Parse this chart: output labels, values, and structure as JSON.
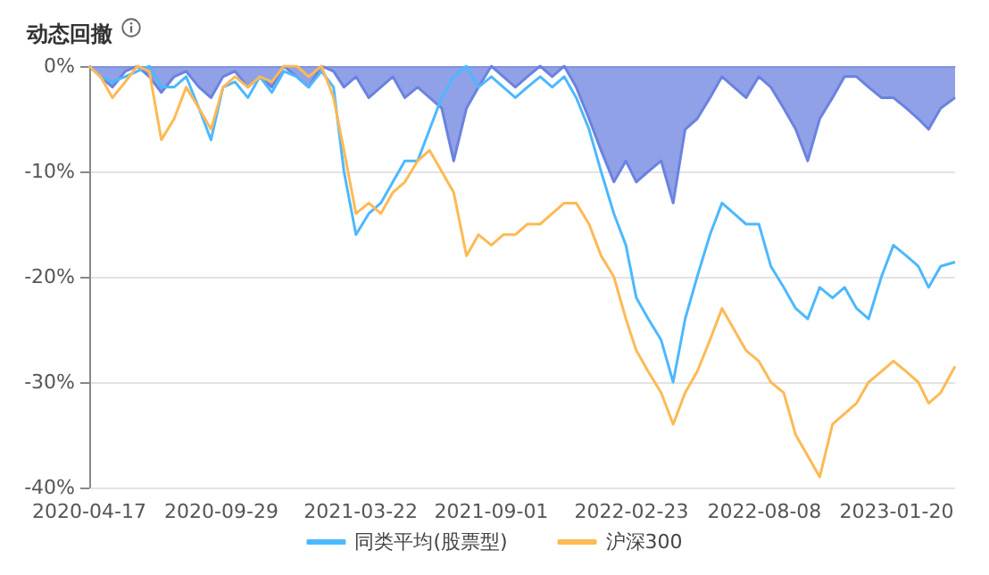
{
  "chart_data": {
    "type": "line",
    "title": "动态回撤",
    "x": [
      "2020-04-17",
      "2020-05-01",
      "2020-05-16",
      "2020-06-01",
      "2020-06-16",
      "2020-07-01",
      "2020-07-16",
      "2020-08-01",
      "2020-08-16",
      "2020-09-01",
      "2020-09-16",
      "2020-10-01",
      "2020-10-16",
      "2020-11-01",
      "2020-11-16",
      "2020-12-01",
      "2020-12-16",
      "2021-01-01",
      "2021-01-16",
      "2021-02-01",
      "2021-02-16",
      "2021-03-01",
      "2021-03-16",
      "2021-04-01",
      "2021-04-16",
      "2021-05-01",
      "2021-05-16",
      "2021-06-01",
      "2021-06-16",
      "2021-07-01",
      "2021-07-16",
      "2021-08-01",
      "2021-08-16",
      "2021-09-01",
      "2021-09-16",
      "2021-10-01",
      "2021-10-16",
      "2021-11-01",
      "2021-11-16",
      "2021-12-01",
      "2021-12-16",
      "2022-01-01",
      "2022-01-16",
      "2022-02-01",
      "2022-02-16",
      "2022-03-01",
      "2022-03-16",
      "2022-04-01",
      "2022-04-16",
      "2022-05-01",
      "2022-05-16",
      "2022-06-01",
      "2022-06-16",
      "2022-07-01",
      "2022-07-16",
      "2022-08-01",
      "2022-08-16",
      "2022-09-01",
      "2022-09-16",
      "2022-10-01",
      "2022-10-16",
      "2022-11-01",
      "2022-11-16",
      "2022-12-01",
      "2022-12-16",
      "2023-01-01",
      "2023-01-16",
      "2023-02-01",
      "2023-02-16",
      "2023-03-01",
      "2023-03-16",
      "2023-04-03"
    ],
    "series": [
      {
        "type": "area",
        "color": "#6b82e0",
        "values": [
          0,
          -1,
          -2,
          -0.5,
          0,
          -1,
          -2.5,
          -1,
          -0.5,
          -2,
          -3,
          -1,
          -0.5,
          -2,
          -1,
          -2,
          0,
          -1,
          -2,
          0,
          -0.5,
          -2,
          -1,
          -3,
          -2,
          -1,
          -3,
          -2,
          -3,
          -4,
          -9,
          -4,
          -2,
          0,
          -1,
          -2,
          -1,
          0,
          -1,
          0,
          -2,
          -5,
          -8,
          -11,
          -9,
          -11,
          -10,
          -9,
          -13,
          -6,
          -5,
          -3,
          -1,
          -2,
          -3,
          -1,
          -2,
          -4,
          -6,
          -9,
          -5,
          -3,
          -1,
          -1,
          -2,
          -3,
          -3,
          -4,
          -5,
          -6,
          -4,
          -3
        ]
      },
      {
        "name": "同类平均(股票型)",
        "color": "#4db8ff",
        "values": [
          0,
          -1,
          -1.5,
          -1,
          -0.5,
          0,
          -2,
          -2,
          -1,
          -4,
          -7,
          -2,
          -1.5,
          -3,
          -1,
          -2.5,
          -0.5,
          -1,
          -2,
          -0.5,
          -2,
          -10,
          -16,
          -14,
          -13,
          -11,
          -9,
          -9,
          -6,
          -3,
          -1,
          0,
          -2,
          -1,
          -2,
          -3,
          -2,
          -1,
          -2,
          -1,
          -3,
          -6,
          -10,
          -14,
          -17,
          -22,
          -24,
          -26,
          -30,
          -24,
          -20,
          -16,
          -13,
          -14,
          -15,
          -15,
          -19,
          -21,
          -23,
          -24,
          -21,
          -22,
          -21,
          -23,
          -24,
          -20,
          -17,
          -18,
          -19,
          -21,
          -19,
          -18.6
        ]
      },
      {
        "name": "沪深300",
        "color": "#ffb955",
        "values": [
          0,
          -1,
          -3,
          -1.5,
          0,
          -0.5,
          -7,
          -5,
          -2,
          -4,
          -6,
          -2,
          -1,
          -2,
          -1,
          -1.5,
          0,
          0,
          -1,
          0,
          -3,
          -8,
          -14,
          -13,
          -14,
          -12,
          -11,
          -9,
          -8,
          -10,
          -12,
          -18,
          -16,
          -17,
          -16,
          -16,
          -15,
          -15,
          -14,
          -13,
          -13,
          -15,
          -18,
          -20,
          -24,
          -27,
          -29,
          -31,
          -34,
          -31,
          -29,
          -26,
          -23,
          -25,
          -27,
          -28,
          -30,
          -31,
          -35,
          -37,
          -39,
          -34,
          -33,
          -32,
          -30,
          -29,
          -28,
          -29,
          -30,
          -32,
          -31,
          -28.5
        ]
      }
    ],
    "xlim": [
      "2020-04-17",
      "2023-04-03"
    ],
    "xticks": [
      "2020-04-17",
      "2020-09-29",
      "2021-03-22",
      "2021-09-01",
      "2022-02-23",
      "2022-08-08",
      "2023-01-20"
    ],
    "ylim": [
      -40,
      0
    ],
    "yticks": [
      {
        "value": -40,
        "label": "-40%"
      },
      {
        "value": -30,
        "label": "-30%"
      },
      {
        "value": -20,
        "label": "-20%"
      },
      {
        "value": -10,
        "label": "-10%"
      },
      {
        "value": 0,
        "label": "0%"
      }
    ],
    "grid": "y",
    "legend": "bottom",
    "marker": "none",
    "line_style": "solid"
  }
}
